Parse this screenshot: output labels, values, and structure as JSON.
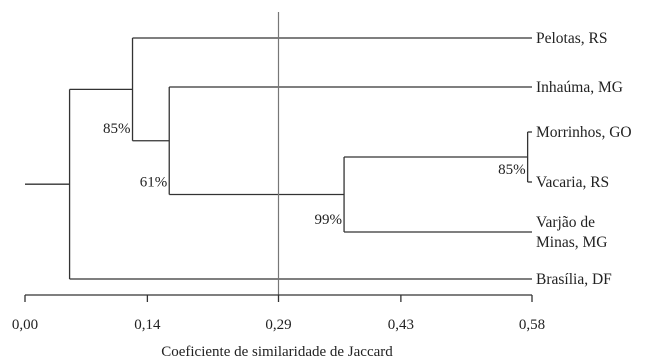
{
  "chart_data": {
    "type": "dendrogram",
    "title": "",
    "xlabel": "Coeficiente de similaridade de Jaccard",
    "ylabel": "",
    "xlim": [
      0.0,
      0.58
    ],
    "x_ticks": [
      {
        "value": 0.0,
        "label": "0,00"
      },
      {
        "value": 0.14,
        "label": "0,14"
      },
      {
        "value": 0.29,
        "label": "0,29"
      },
      {
        "value": 0.43,
        "label": "0,43"
      },
      {
        "value": 0.58,
        "label": "0,58"
      }
    ],
    "cutoff_line": 0.29,
    "leaves": [
      {
        "id": "L1",
        "label": [
          "Pelotas, RS"
        ]
      },
      {
        "id": "L2",
        "label": [
          "Inhaúma, MG"
        ]
      },
      {
        "id": "L3",
        "label": [
          "Morrinhos, GO"
        ]
      },
      {
        "id": "L4",
        "label": [
          "Vacaria, RS"
        ]
      },
      {
        "id": "L5",
        "label": [
          "Varjão de",
          "Minas, MG"
        ]
      },
      {
        "id": "L6",
        "label": [
          "Brasília, DF"
        ]
      }
    ],
    "nodes": [
      {
        "id": "N1",
        "children": [
          "L3",
          "L4"
        ],
        "similarity": 0.575,
        "support": "85%"
      },
      {
        "id": "N2",
        "children": [
          "N1",
          "L5"
        ],
        "similarity": 0.365,
        "support": "99%"
      },
      {
        "id": "N3",
        "children": [
          "L2",
          "N2"
        ],
        "similarity": 0.165,
        "support": "61%"
      },
      {
        "id": "N4",
        "children": [
          "L1",
          "N3"
        ],
        "similarity": 0.123,
        "support": "85%"
      },
      {
        "id": "N5",
        "children": [
          "N4",
          "L6"
        ],
        "similarity": 0.051,
        "support": ""
      }
    ],
    "root": "N5"
  }
}
